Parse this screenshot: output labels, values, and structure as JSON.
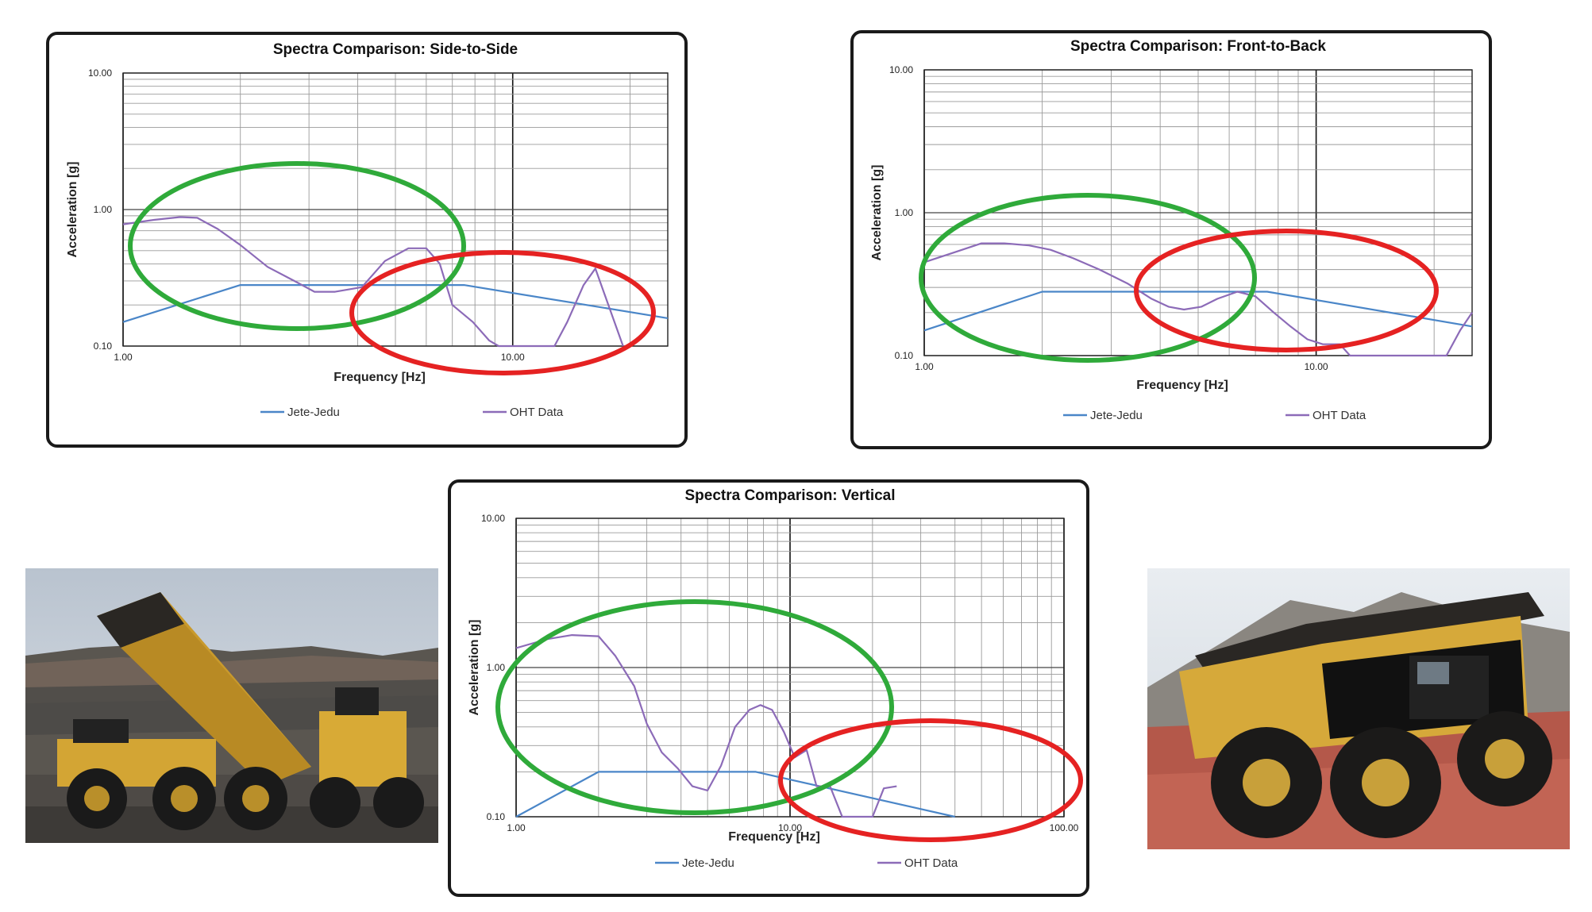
{
  "chart_data": [
    {
      "type": "line",
      "title": "Spectra Comparison: Side-to-Side",
      "xlabel": "Frequency [Hz]",
      "ylabel": "Acceleration [g]",
      "xscale": "log",
      "yscale": "log",
      "xlim": [
        1,
        25
      ],
      "ylim": [
        0.1,
        10
      ],
      "grid": true,
      "legend_position": "bottom",
      "x_ticks": [
        "1.00",
        "10.00"
      ],
      "y_ticks": [
        "0.10",
        "1.00",
        "10.00"
      ],
      "series": [
        {
          "name": "Jete-Jedu",
          "color": "#4a86c8",
          "x": [
            1.0,
            2.0,
            7.5,
            25.0
          ],
          "y": [
            0.15,
            0.28,
            0.28,
            0.16
          ]
        },
        {
          "name": "OHT Data",
          "color": "#8c6bb8",
          "x": [
            1.0,
            1.2,
            1.4,
            1.55,
            1.75,
            2.0,
            2.35,
            2.75,
            3.1,
            3.5,
            4.1,
            4.7,
            5.4,
            6.0,
            6.5,
            7.0,
            7.9,
            8.7,
            9.2,
            12.8,
            13.8,
            15.2,
            16.3,
            19.2
          ],
          "y": [
            0.78,
            0.84,
            0.88,
            0.87,
            0.72,
            0.55,
            0.38,
            0.3,
            0.25,
            0.25,
            0.27,
            0.42,
            0.52,
            0.52,
            0.4,
            0.2,
            0.15,
            0.11,
            0.1,
            0.1,
            0.15,
            0.28,
            0.37,
            0.1
          ]
        }
      ],
      "annotations": [
        {
          "shape": "ellipse",
          "color": "#2faa3a"
        },
        {
          "shape": "ellipse",
          "color": "#e52222"
        }
      ]
    },
    {
      "type": "line",
      "title": "Spectra Comparison: Front-to-Back",
      "xlabel": "Frequency [Hz]",
      "ylabel": "Acceleration [g]",
      "xscale": "log",
      "yscale": "log",
      "xlim": [
        1,
        25
      ],
      "ylim": [
        0.1,
        10
      ],
      "grid": true,
      "legend_position": "bottom",
      "x_ticks": [
        "1.00",
        "10.00"
      ],
      "y_ticks": [
        "0.10",
        "1.00",
        "10.00"
      ],
      "series": [
        {
          "name": "Jete-Jedu",
          "color": "#4a86c8",
          "x": [
            1.0,
            2.0,
            7.5,
            25.0
          ],
          "y": [
            0.15,
            0.28,
            0.28,
            0.16
          ]
        },
        {
          "name": "OHT Data",
          "color": "#8c6bb8",
          "x": [
            1.0,
            1.2,
            1.4,
            1.6,
            1.85,
            2.1,
            2.4,
            2.8,
            3.3,
            3.8,
            4.2,
            4.6,
            5.1,
            5.6,
            6.3,
            7.0,
            7.8,
            8.6,
            9.5,
            10.4,
            11.5,
            12.2,
            21.5,
            23.3,
            25.0
          ],
          "y": [
            0.45,
            0.53,
            0.61,
            0.61,
            0.59,
            0.55,
            0.48,
            0.4,
            0.32,
            0.25,
            0.22,
            0.21,
            0.22,
            0.25,
            0.28,
            0.26,
            0.2,
            0.16,
            0.13,
            0.12,
            0.12,
            0.1,
            0.1,
            0.15,
            0.2
          ]
        }
      ],
      "annotations": [
        {
          "shape": "ellipse",
          "color": "#2faa3a"
        },
        {
          "shape": "ellipse",
          "color": "#e52222"
        }
      ]
    },
    {
      "type": "line",
      "title": "Spectra Comparison: Vertical",
      "xlabel": "Frequency [Hz]",
      "ylabel": "Acceleration [g]",
      "xscale": "log",
      "yscale": "log",
      "xlim": [
        1,
        100
      ],
      "ylim": [
        0.1,
        10
      ],
      "grid": true,
      "legend_position": "bottom",
      "x_ticks": [
        "1.00",
        "10.00",
        "100.00"
      ],
      "y_ticks": [
        "0.10",
        "1.00",
        "10.00"
      ],
      "series": [
        {
          "name": "Jete-Jedu",
          "color": "#4a86c8",
          "x": [
            1.0,
            2.0,
            7.5,
            40.0
          ],
          "y": [
            0.1,
            0.2,
            0.2,
            0.1
          ]
        },
        {
          "name": "OHT Data",
          "color": "#8c6bb8",
          "x": [
            1.0,
            1.3,
            1.6,
            2.0,
            2.3,
            2.7,
            3.0,
            3.4,
            3.9,
            4.4,
            5.0,
            5.6,
            6.3,
            7.1,
            7.8,
            8.6,
            9.5,
            10.4,
            11.5,
            12.5,
            14.0,
            15.5,
            18.0,
            20.0,
            22.0,
            24.5
          ],
          "y": [
            1.35,
            1.55,
            1.65,
            1.62,
            1.2,
            0.75,
            0.42,
            0.27,
            0.21,
            0.16,
            0.15,
            0.22,
            0.4,
            0.52,
            0.56,
            0.52,
            0.37,
            0.25,
            0.28,
            0.16,
            0.16,
            0.1,
            0.1,
            0.1,
            0.155,
            0.16
          ]
        }
      ],
      "annotations": [
        {
          "shape": "ellipse",
          "color": "#2faa3a"
        },
        {
          "shape": "ellipse",
          "color": "#e52222"
        }
      ]
    }
  ],
  "photos": [
    {
      "icon": "dump-truck-loading-icon",
      "scene": "truck-bed-raised"
    },
    {
      "icon": "dump-truck-icon",
      "scene": "truck-side-view"
    }
  ]
}
